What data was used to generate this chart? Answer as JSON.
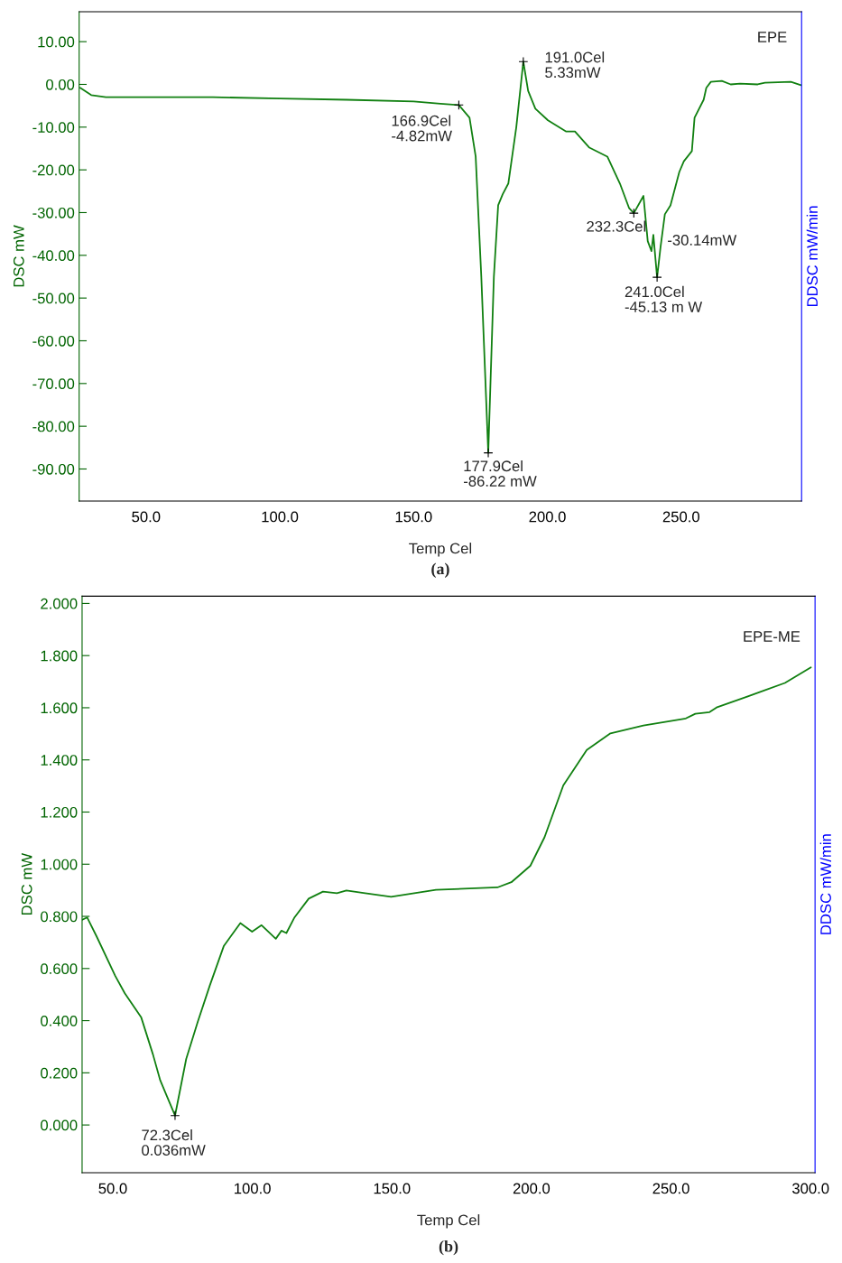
{
  "chart_data": [
    {
      "type": "line",
      "title": "(a)",
      "xlabel": "Temp Cel",
      "ylabel": "DSC mW",
      "y2label": "DDSC mW/min",
      "xlim": [
        25,
        295
      ],
      "ylim": [
        -97.5,
        17
      ],
      "xticks": [
        {
          "value": 50,
          "label": "50.0"
        },
        {
          "value": 100,
          "label": "100.0"
        },
        {
          "value": 150,
          "label": "150.0"
        },
        {
          "value": 200,
          "label": "200.0"
        },
        {
          "value": 250,
          "label": "250.0"
        }
      ],
      "yticks": [
        {
          "value": 10,
          "label": "10.00"
        },
        {
          "value": 0,
          "label": "0.00"
        },
        {
          "value": -10,
          "label": "-10.00"
        },
        {
          "value": -20,
          "label": "-20.00"
        },
        {
          "value": -30,
          "label": "-30.00"
        },
        {
          "value": -40,
          "label": "-40.00"
        },
        {
          "value": -50,
          "label": "-50.00"
        },
        {
          "value": -60,
          "label": "-60.00"
        },
        {
          "value": -70,
          "label": "-70.00"
        },
        {
          "value": -80,
          "label": "-80.00"
        },
        {
          "value": -90,
          "label": "-90.00"
        }
      ],
      "series": [
        {
          "color": "#118011",
          "x": [
            25.4,
            29.5,
            35,
            50,
            75,
            100,
            125,
            150,
            160,
            166.9,
            170.9,
            173.2,
            175.3,
            177.9,
            180,
            181.6,
            183.3,
            185.4,
            188.4,
            191.0,
            192.8,
            195.5,
            200.2,
            206.9,
            210.3,
            215.7,
            222.4,
            227.1,
            230.5,
            232.3,
            235.9,
            237.5,
            238.9,
            239.6,
            241.0,
            242.3,
            243.9,
            246,
            249.3,
            251,
            254,
            255,
            258.4,
            259.4,
            261.1,
            265.2,
            268.5,
            272,
            278.6,
            281.3,
            291,
            294.8
          ],
          "values": [
            -0.8,
            -2.5,
            -3.0,
            -3.0,
            -3.0,
            -3.3,
            -3.6,
            -4.0,
            -4.5,
            -4.82,
            -7.8,
            -16.9,
            -45,
            -86.22,
            -45,
            -28.3,
            -25.7,
            -23.2,
            -9.9,
            5.33,
            -1.5,
            -5.7,
            -8.4,
            -11.0,
            -11.0,
            -14.8,
            -16.9,
            -23.2,
            -28.9,
            -30.14,
            -26.1,
            -36.7,
            -39.0,
            -35.2,
            -45.13,
            -38,
            -30.4,
            -28.3,
            -20.5,
            -18,
            -15.6,
            -7.8,
            -3.6,
            -0.8,
            0.6,
            0.8,
            0,
            0.2,
            0,
            0.4,
            0.6,
            -0.2
          ]
        }
      ],
      "annotations": [
        "EPE",
        {
          "text": "166.9Cel\n-4.82mW",
          "x": 166.9,
          "y": -4.82
        },
        {
          "text": "191.0Cel\n5.33mW",
          "x": 191.0,
          "y": 5.33
        },
        {
          "text": "177.9Cel\n-86.22 mW",
          "x": 177.9,
          "y": -86.22
        },
        {
          "text": "232.3Cel",
          "x": 232.3,
          "y": -30.14
        },
        "-30.14mW",
        {
          "text": "241.0Cel\n-45.13 m W",
          "x": 241.0,
          "y": -45.13
        }
      ]
    },
    {
      "type": "line",
      "title": "(b)",
      "xlabel": "Temp Cel",
      "ylabel": "DSC mW",
      "y2label": "DDSC mW/min",
      "xlim": [
        39.0,
        301.6
      ],
      "ylim": [
        -0.183,
        2.028
      ],
      "xticks": [
        {
          "value": 50,
          "label": "50.0"
        },
        {
          "value": 100,
          "label": "100.0"
        },
        {
          "value": 150,
          "label": "150.0"
        },
        {
          "value": 200,
          "label": "200.0"
        },
        {
          "value": 250,
          "label": "250.0"
        },
        {
          "value": 300,
          "label": "300.0"
        }
      ],
      "yticks": [
        {
          "value": 2,
          "label": "2.000"
        },
        {
          "value": 1.8,
          "label": "1.800"
        },
        {
          "value": 1.6,
          "label": "1.600"
        },
        {
          "value": 1.4,
          "label": "1.400"
        },
        {
          "value": 1.2,
          "label": "1.200"
        },
        {
          "value": 1,
          "label": "1.000"
        },
        {
          "value": 0.8,
          "label": "0.800"
        },
        {
          "value": 0.6,
          "label": "0.600"
        },
        {
          "value": 0.4,
          "label": "0.400"
        },
        {
          "value": 0.2,
          "label": "0.200"
        },
        {
          "value": 0,
          "label": "0.000"
        }
      ],
      "series": [
        {
          "color": "#118011",
          "x": [
            39.1,
            40.8,
            44.2,
            50.9,
            54.3,
            60.2,
            64.4,
            67,
            69.5,
            72.3,
            76.3,
            80.5,
            84.7,
            89.8,
            95.7,
            99.9,
            103.3,
            108.4,
            110.4,
            112.2,
            115.1,
            120.2,
            125.3,
            130.3,
            133.7,
            140.4,
            149.7,
            165.8,
            187.8,
            192.8,
            199.6,
            204.7,
            211.4,
            219.8,
            228.3,
            240.1,
            255.3,
            258.7,
            263.8,
            266.3,
            277.3,
            290.8,
            300.1
          ],
          "values": [
            0.787,
            0.796,
            0.723,
            0.571,
            0.505,
            0.412,
            0.27,
            0.171,
            0.107,
            0.036,
            0.253,
            0.398,
            0.533,
            0.687,
            0.774,
            0.741,
            0.766,
            0.714,
            0.745,
            0.736,
            0.796,
            0.868,
            0.895,
            0.889,
            0.899,
            0.889,
            0.875,
            0.902,
            0.911,
            0.931,
            0.994,
            1.104,
            1.302,
            1.438,
            1.502,
            1.532,
            1.559,
            1.577,
            1.583,
            1.601,
            1.643,
            1.695,
            1.755
          ]
        }
      ],
      "annotations": [
        "EPE-ME",
        {
          "text": "72.3Cel\n0.036mW",
          "x": 72.3,
          "y": 0.036
        }
      ]
    }
  ]
}
